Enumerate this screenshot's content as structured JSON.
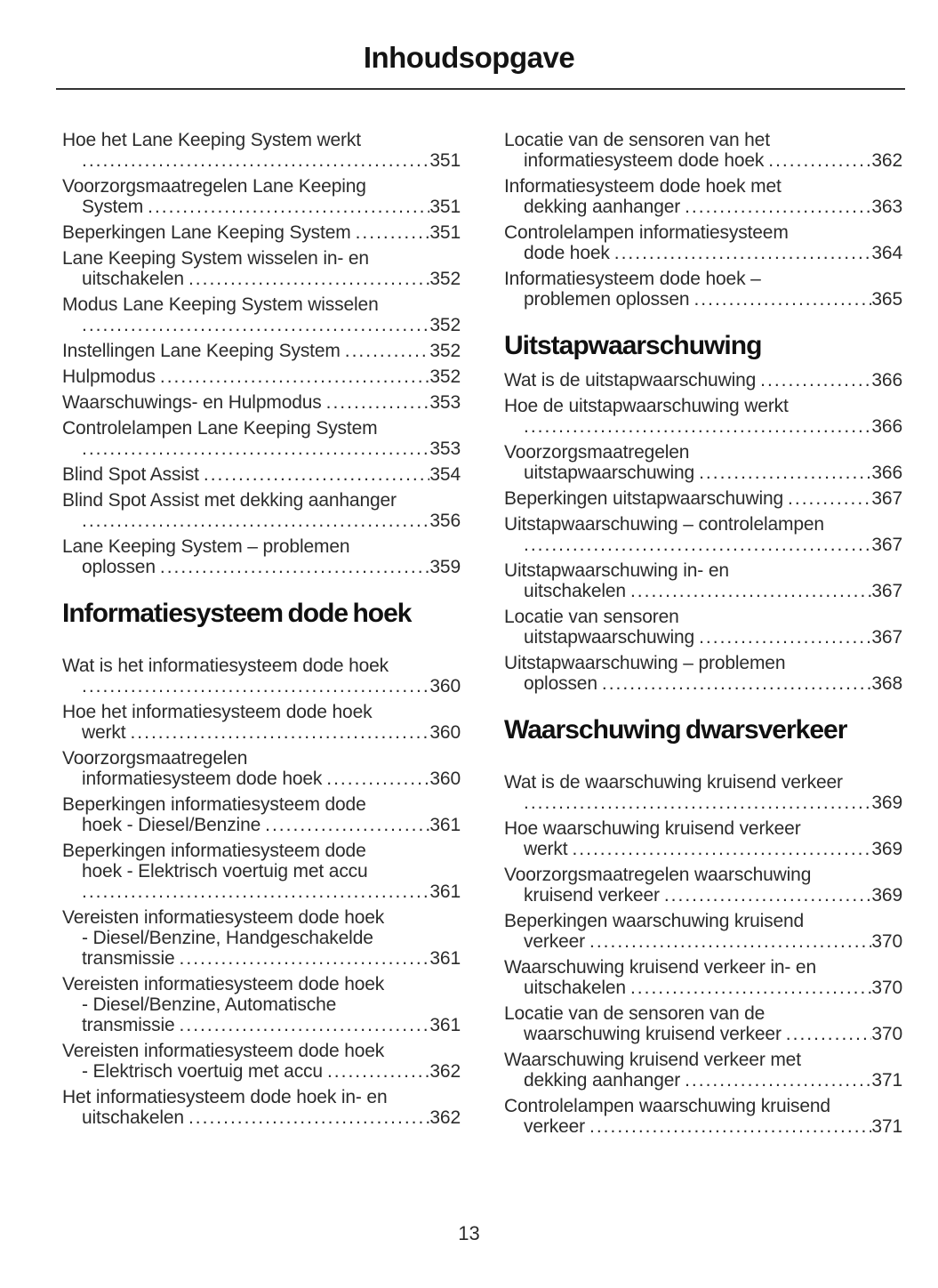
{
  "title": "Inhoudsopgave",
  "page_number": "13",
  "colors": {
    "text": "#2b2b2b",
    "heading": "#111111",
    "rule": "#333333",
    "background": "#ffffff"
  },
  "columns": [
    {
      "blocks": [
        {
          "type": "entries",
          "items": [
            {
              "lines": [
                "Hoe het Lane Keeping System werkt"
              ],
              "tail": "",
              "page": "351"
            },
            {
              "lines": [
                "Voorzorgsmaatregelen Lane Keeping"
              ],
              "tail": "System",
              "page": "351"
            },
            {
              "lines": [],
              "tail": "Beperkingen Lane Keeping System",
              "page": "351"
            },
            {
              "lines": [
                "Lane Keeping System wisselen in- en"
              ],
              "tail": "uitschakelen",
              "page": "352"
            },
            {
              "lines": [
                "Modus Lane Keeping System wisselen"
              ],
              "tail": "",
              "page": "352"
            },
            {
              "lines": [],
              "tail": "Instellingen Lane Keeping System",
              "page": "352"
            },
            {
              "lines": [],
              "tail": "Hulpmodus",
              "page": "352"
            },
            {
              "lines": [],
              "tail": "Waarschuwings- en Hulpmodus",
              "page": "353"
            },
            {
              "lines": [
                "Controlelampen Lane Keeping System"
              ],
              "tail": "",
              "page": "353"
            },
            {
              "lines": [],
              "tail": "Blind Spot Assist",
              "page": "354"
            },
            {
              "lines": [
                "Blind Spot Assist met dekking aanhanger"
              ],
              "tail": "",
              "page": "356"
            },
            {
              "lines": [
                "Lane Keeping System – problemen"
              ],
              "tail": "oplossen",
              "page": "359"
            }
          ]
        },
        {
          "type": "heading",
          "label": "Informatiesysteem dode hoek",
          "gap_after": true
        },
        {
          "type": "entries",
          "items": [
            {
              "lines": [
                "Wat is het informatiesysteem dode hoek"
              ],
              "tail": "",
              "page": "360"
            },
            {
              "lines": [
                "Hoe het informatiesysteem dode hoek"
              ],
              "tail": "werkt",
              "page": "360"
            },
            {
              "lines": [
                "Voorzorgsmaatregelen"
              ],
              "tail": "informatiesysteem dode hoek",
              "page": "360"
            },
            {
              "lines": [
                "Beperkingen informatiesysteem dode"
              ],
              "tail": "hoek - Diesel/Benzine",
              "page": "361"
            },
            {
              "lines": [
                "Beperkingen informatiesysteem dode",
                "hoek - Elektrisch voertuig met accu"
              ],
              "tail": "",
              "page": "361"
            },
            {
              "lines": [
                "Vereisten informatiesysteem dode hoek",
                "- Diesel/Benzine, Handgeschakelde"
              ],
              "tail": "transmissie",
              "page": "361"
            },
            {
              "lines": [
                "Vereisten informatiesysteem dode hoek",
                "- Diesel/Benzine, Automatische"
              ],
              "tail": "transmissie",
              "page": "361"
            },
            {
              "lines": [
                "Vereisten informatiesysteem dode hoek"
              ],
              "tail": "- Elektrisch voertuig met accu",
              "page": "362"
            },
            {
              "lines": [
                "Het informatiesysteem dode hoek in- en"
              ],
              "tail": "uitschakelen",
              "page": "362"
            }
          ]
        }
      ]
    },
    {
      "blocks": [
        {
          "type": "entries",
          "items": [
            {
              "lines": [
                "Locatie van de sensoren van het"
              ],
              "tail": "informatiesysteem dode hoek",
              "page": "362"
            },
            {
              "lines": [
                "Informatiesysteem dode hoek met"
              ],
              "tail": "dekking aanhanger",
              "page": "363"
            },
            {
              "lines": [
                "Controlelampen informatiesysteem"
              ],
              "tail": "dode hoek",
              "page": "364"
            },
            {
              "lines": [
                "Informatiesysteem dode hoek –"
              ],
              "tail": "problemen oplossen",
              "page": "365"
            }
          ]
        },
        {
          "type": "heading",
          "label": "Uitstapwaarschuwing",
          "gap_after": false
        },
        {
          "type": "entries",
          "items": [
            {
              "lines": [],
              "tail": "Wat is de uitstapwaarschuwing",
              "page": "366"
            },
            {
              "lines": [
                "Hoe de uitstapwaarschuwing werkt"
              ],
              "tail": "",
              "page": "366"
            },
            {
              "lines": [
                "Voorzorgsmaatregelen"
              ],
              "tail": "uitstapwaarschuwing",
              "page": "366"
            },
            {
              "lines": [],
              "tail": "Beperkingen uitstapwaarschuwing",
              "page": "367"
            },
            {
              "lines": [
                "Uitstapwaarschuwing – controlelampen"
              ],
              "tail": "",
              "page": "367"
            },
            {
              "lines": [
                "Uitstapwaarschuwing in- en"
              ],
              "tail": "uitschakelen",
              "page": "367"
            },
            {
              "lines": [
                "Locatie van sensoren"
              ],
              "tail": "uitstapwaarschuwing",
              "page": "367"
            },
            {
              "lines": [
                "Uitstapwaarschuwing – problemen"
              ],
              "tail": "oplossen",
              "page": "368"
            }
          ]
        },
        {
          "type": "heading",
          "label": "Waarschuwing dwarsverkeer",
          "gap_after": true
        },
        {
          "type": "entries",
          "items": [
            {
              "lines": [
                "Wat is de waarschuwing kruisend verkeer"
              ],
              "tail": "",
              "page": "369"
            },
            {
              "lines": [
                "Hoe waarschuwing kruisend verkeer"
              ],
              "tail": "werkt",
              "page": "369"
            },
            {
              "lines": [
                "Voorzorgsmaatregelen waarschuwing"
              ],
              "tail": "kruisend verkeer",
              "page": "369"
            },
            {
              "lines": [
                "Beperkingen waarschuwing kruisend"
              ],
              "tail": "verkeer",
              "page": "370"
            },
            {
              "lines": [
                "Waarschuwing kruisend verkeer in- en"
              ],
              "tail": "uitschakelen",
              "page": "370"
            },
            {
              "lines": [
                "Locatie van de sensoren van de"
              ],
              "tail": "waarschuwing kruisend verkeer",
              "page": "370"
            },
            {
              "lines": [
                "Waarschuwing kruisend verkeer met"
              ],
              "tail": "dekking aanhanger",
              "page": "371"
            },
            {
              "lines": [
                "Controlelampen waarschuwing kruisend"
              ],
              "tail": "verkeer",
              "page": "371"
            }
          ]
        }
      ]
    }
  ]
}
